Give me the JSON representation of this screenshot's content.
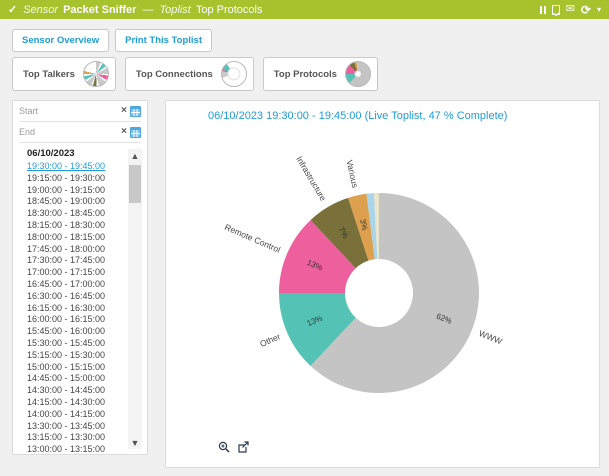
{
  "header": {
    "status_check": "✓",
    "sensor_label": "Sensor",
    "sensor_name": "Packet Sniffer",
    "separator": "—",
    "toplist_label": "Toplist",
    "page_name": "Top Protocols",
    "email_glyph": "✉",
    "refresh_glyph": "⟳",
    "caret_glyph": "▾",
    "bar_color": "#a6c22d"
  },
  "toolbar": {
    "buttons": [
      "Sensor Overview",
      "Print This Toplist"
    ]
  },
  "cards": [
    {
      "label": "Top Talkers",
      "hole": 0.12,
      "pie": [
        {
          "pct": 6,
          "color": "#c9c9c9"
        },
        {
          "pct": 3,
          "color": "#ffffff"
        },
        {
          "pct": 5,
          "color": "#54c3b6"
        },
        {
          "pct": 3,
          "color": "#ffffff"
        },
        {
          "pct": 8,
          "color": "#c9c9c9"
        },
        {
          "pct": 2,
          "color": "#ffffff"
        },
        {
          "pct": 6,
          "color": "#ee5f9e"
        },
        {
          "pct": 3,
          "color": "#ffffff"
        },
        {
          "pct": 10,
          "color": "#c9c9c9"
        },
        {
          "pct": 3,
          "color": "#ffffff"
        },
        {
          "pct": 5,
          "color": "#79703a"
        },
        {
          "pct": 2,
          "color": "#ffffff"
        },
        {
          "pct": 8,
          "color": "#c9c9c9"
        },
        {
          "pct": 3,
          "color": "#ffffff"
        },
        {
          "pct": 5,
          "color": "#54c3b6"
        },
        {
          "pct": 3,
          "color": "#ffffff"
        },
        {
          "pct": 4,
          "color": "#dda04f"
        },
        {
          "pct": 21,
          "color": "#ffffff"
        }
      ]
    },
    {
      "label": "Top Connections",
      "hole": 0.55,
      "pie": [
        {
          "pct": 70,
          "color": "#ffffff"
        },
        {
          "pct": 9,
          "color": "#c9c9c9"
        },
        {
          "pct": 2,
          "color": "#ee5f9e"
        },
        {
          "pct": 9,
          "color": "#54c3b6"
        },
        {
          "pct": 10,
          "color": "#ffffff"
        }
      ]
    },
    {
      "label": "Top Protocols",
      "hole": 0.3,
      "pie": [
        {
          "pct": 62,
          "color": "#c4c4c4"
        },
        {
          "pct": 13,
          "color": "#54c3b6"
        },
        {
          "pct": 13,
          "color": "#ee5f9e"
        },
        {
          "pct": 7,
          "color": "#79703a"
        },
        {
          "pct": 3,
          "color": "#dda04f"
        },
        {
          "pct": 2,
          "color": "#aad5e8"
        }
      ]
    }
  ],
  "filter": {
    "start_placeholder": "Start",
    "end_placeholder": "End",
    "clear_glyph": "×"
  },
  "history": {
    "date": "06/10/2023",
    "selected": "19:30:00 - 19:45:00",
    "items": [
      "19:30:00 - 19:45:00",
      "19:15:00 - 19:30:00",
      "19:00:00 - 19:15:00",
      "18:45:00 - 19:00:00",
      "18:30:00 - 18:45:00",
      "18:15:00 - 18:30:00",
      "18:00:00 - 18:15:00",
      "17:45:00 - 18:00:00",
      "17:30:00 - 17:45:00",
      "17:00:00 - 17:15:00",
      "16:45:00 - 17:00:00",
      "16:30:00 - 16:45:00",
      "16:15:00 - 16:30:00",
      "16:00:00 - 16:15:00",
      "15:45:00 - 16:00:00",
      "15:30:00 - 15:45:00",
      "15:15:00 - 15:30:00",
      "15:00:00 - 15:15:00",
      "14:45:00 - 15:00:00",
      "14:30:00 - 14:45:00",
      "14:15:00 - 14:30:00",
      "14:00:00 - 14:15:00",
      "13:30:00 - 13:45:00",
      "13:15:00 - 13:30:00",
      "13:00:00 - 13:15:00"
    ]
  },
  "chart_data": {
    "type": "pie",
    "title": "06/10/2023 19:30:00 - 19:45:00 (Live Toplist, 47 % Complete)",
    "donut_hole_ratio": 0.34,
    "legend_position": "none",
    "slices": [
      {
        "label": "WWW",
        "pct": 62,
        "color": "#c4c4c4"
      },
      {
        "label": "Other",
        "pct": 13,
        "color": "#54c3b6"
      },
      {
        "label": "Remote Control",
        "pct": 13,
        "color": "#ee5f9e"
      },
      {
        "label": "Infrastructure",
        "pct": 7,
        "color": "#79703a"
      },
      {
        "label": "Various",
        "pct": 3,
        "color": "#dda04f"
      },
      {
        "label": "",
        "pct": 1.2,
        "color": "#aad5e8"
      },
      {
        "label": "",
        "pct": 0.8,
        "color": "#e9e5cb"
      }
    ]
  }
}
